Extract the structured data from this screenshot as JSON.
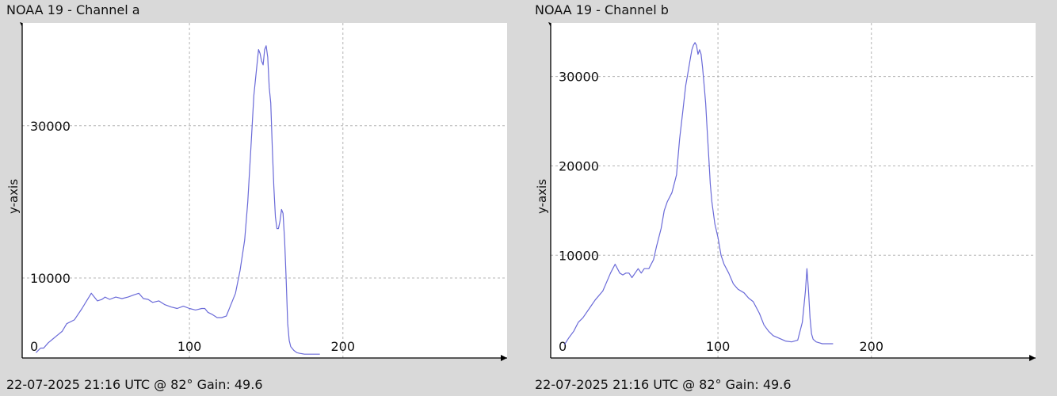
{
  "footer_text": "22-07-2025 21:16 UTC @ 82° Gain: 49.6",
  "chart_data": [
    {
      "type": "line",
      "title": "NOAA 19 - Channel a",
      "ylabel": "y-axis",
      "xlabel": "",
      "xlim": [
        -9,
        307
      ],
      "ylim": [
        -500,
        43500
      ],
      "xticks": [
        0,
        100,
        200
      ],
      "yticks": [
        10000,
        30000
      ],
      "y_zero_label": "0",
      "grid": true,
      "line_color": "#6a6ad8",
      "series": [
        {
          "x": [
            0,
            3,
            5,
            8,
            11,
            14,
            17,
            20,
            25,
            30,
            33,
            36,
            40,
            43,
            45,
            48,
            52,
            56,
            60,
            64,
            67,
            70,
            73,
            76,
            80,
            84,
            88,
            92,
            96,
            100,
            104,
            108,
            110,
            112,
            115,
            118,
            121,
            124,
            127,
            130,
            133,
            136,
            138,
            140,
            142,
            144,
            145,
            146,
            147,
            148,
            149,
            150,
            151,
            152,
            153,
            154,
            155,
            156,
            157,
            158,
            159,
            160,
            161,
            162,
            163,
            164,
            165,
            166,
            168,
            170,
            172,
            175,
            180,
            185
          ],
          "y": [
            200,
            800,
            800,
            1500,
            2000,
            2500,
            3000,
            4000,
            4500,
            6000,
            7000,
            8000,
            7000,
            7200,
            7500,
            7200,
            7500,
            7300,
            7500,
            7800,
            8000,
            7300,
            7200,
            6800,
            7000,
            6500,
            6200,
            6000,
            6300,
            6000,
            5800,
            6000,
            6000,
            5500,
            5200,
            4800,
            4800,
            5000,
            6500,
            8000,
            11000,
            15000,
            20000,
            27000,
            34000,
            38000,
            40000,
            39500,
            38500,
            38000,
            40000,
            40500,
            39000,
            35000,
            33000,
            27000,
            22000,
            18000,
            16500,
            16500,
            17500,
            19000,
            18500,
            15000,
            10000,
            4000,
            1800,
            1000,
            500,
            200,
            100,
            0,
            0,
            0
          ]
        }
      ]
    },
    {
      "type": "line",
      "title": "NOAA 19 - Channel b",
      "ylabel": "y-axis",
      "xlabel": "",
      "xlim": [
        -9,
        307
      ],
      "ylim": [
        -1500,
        36000
      ],
      "xticks": [
        0,
        100,
        200
      ],
      "yticks": [
        10000,
        20000,
        30000
      ],
      "y_zero_label": "0",
      "grid": true,
      "line_color": "#6a6ad8",
      "series": [
        {
          "x": [
            0,
            3,
            6,
            9,
            12,
            16,
            20,
            25,
            30,
            33,
            36,
            38,
            40,
            42,
            44,
            46,
            48,
            50,
            52,
            55,
            58,
            60,
            63,
            65,
            67,
            70,
            73,
            75,
            77,
            79,
            80,
            82,
            83,
            84,
            85,
            86,
            87,
            88,
            89,
            90,
            91,
            92,
            93,
            94,
            95,
            96,
            98,
            100,
            102,
            104,
            107,
            110,
            113,
            117,
            120,
            123,
            127,
            130,
            133,
            136,
            140,
            144,
            148,
            152,
            155,
            157,
            158,
            159,
            160,
            161,
            162,
            164,
            166,
            168,
            172,
            175
          ],
          "y": [
            0,
            800,
            1500,
            2500,
            3000,
            4000,
            5000,
            6000,
            8000,
            9000,
            8000,
            7800,
            8000,
            8000,
            7500,
            8000,
            8500,
            8000,
            8500,
            8500,
            9500,
            11000,
            13000,
            15000,
            16000,
            17000,
            19000,
            23000,
            26000,
            29000,
            30000,
            32000,
            33000,
            33500,
            33800,
            33500,
            32500,
            33000,
            32500,
            31000,
            29000,
            27000,
            24000,
            21000,
            18000,
            16000,
            13500,
            12000,
            10000,
            9000,
            8000,
            6800,
            6200,
            5800,
            5200,
            4800,
            3500,
            2200,
            1500,
            1000,
            700,
            400,
            300,
            500,
            2500,
            6000,
            8500,
            6000,
            3000,
            1200,
            600,
            300,
            200,
            100,
            100,
            100
          ]
        }
      ]
    }
  ]
}
